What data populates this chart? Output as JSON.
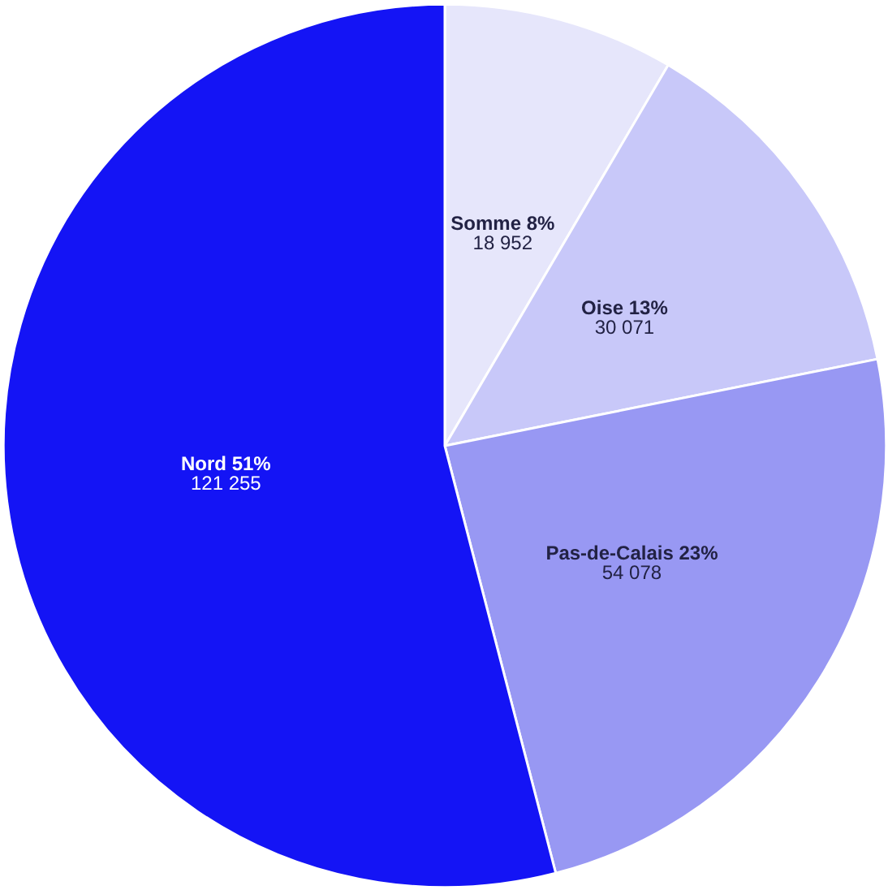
{
  "chart_data": {
    "type": "pie",
    "categories": [
      "Somme",
      "Oise",
      "Pas-de-Calais",
      "Nord"
    ],
    "values": [
      18952,
      30071,
      54078,
      121255
    ],
    "colors": [
      "#e6e6fb",
      "#c8c8f9",
      "#9898f3",
      "#1414f5"
    ],
    "value_labels": [
      "8%\n18 952",
      "13%\n30 071",
      "23%\n54 078",
      "51%\n121 255"
    ]
  }
}
